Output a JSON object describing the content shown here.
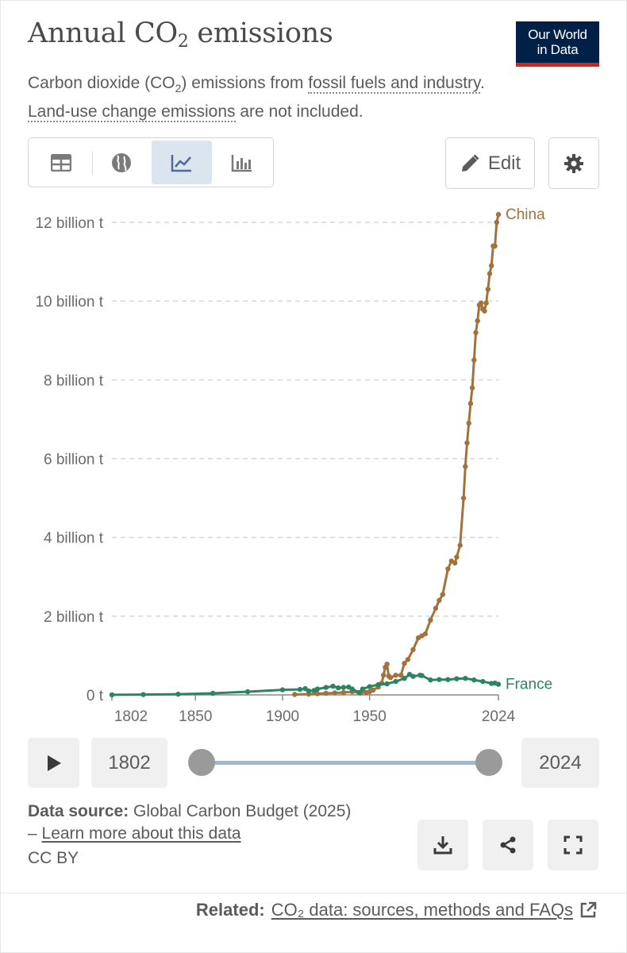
{
  "header": {
    "title_main": "Annual CO",
    "title_sub": "2",
    "title_end": " emissions",
    "logo_line1": "Our World",
    "logo_line2": "in Data",
    "subtitle_part1": "Carbon dioxide (CO",
    "subtitle_sub": "2",
    "subtitle_part2": ") emissions from ",
    "subtitle_link1": "fossil fuels and industry",
    "subtitle_part3": ". ",
    "subtitle_link2": "Land-use change emissions",
    "subtitle_part4": " are not included."
  },
  "toolbar": {
    "tabs": [
      {
        "icon": "table-icon"
      },
      {
        "icon": "globe-icon"
      },
      {
        "icon": "line-chart-icon",
        "active": true
      },
      {
        "icon": "bar-chart-icon"
      }
    ],
    "edit_label": "Edit",
    "settings_icon": "gear-icon"
  },
  "chart_data": {
    "type": "line",
    "xlabel": "",
    "ylabel": "",
    "xlim": [
      1802,
      2024
    ],
    "ylim": [
      0,
      12000000000
    ],
    "x_ticks": [
      1802,
      1850,
      1900,
      1950,
      2024
    ],
    "y_ticks": [
      {
        "value": 0,
        "label": "0 t"
      },
      {
        "value": 2000000000,
        "label": "2 billion t"
      },
      {
        "value": 4000000000,
        "label": "4 billion t"
      },
      {
        "value": 6000000000,
        "label": "6 billion t"
      },
      {
        "value": 8000000000,
        "label": "8 billion t"
      },
      {
        "value": 10000000000,
        "label": "10 billion t"
      },
      {
        "value": 12000000000,
        "label": "12 billion t"
      }
    ],
    "grid": "horizontal-dashed",
    "series": [
      {
        "name": "China",
        "color": "#a2723c",
        "x": [
          1907,
          1915,
          1920,
          1925,
          1930,
          1935,
          1940,
          1945,
          1948,
          1950,
          1952,
          1955,
          1957,
          1958,
          1959,
          1960,
          1961,
          1962,
          1965,
          1968,
          1970,
          1972,
          1975,
          1978,
          1980,
          1982,
          1985,
          1988,
          1990,
          1992,
          1995,
          1997,
          1999,
          2000,
          2002,
          2004,
          2005,
          2006,
          2007,
          2008,
          2009,
          2010,
          2011,
          2012,
          2013,
          2014,
          2015,
          2016,
          2017,
          2018,
          2019,
          2020,
          2021,
          2022,
          2023,
          2024
        ],
        "y": [
          10000000,
          20000000,
          30000000,
          40000000,
          50000000,
          60000000,
          80000000,
          50000000,
          60000000,
          80000000,
          120000000,
          200000000,
          300000000,
          500000000,
          700000000,
          780000000,
          480000000,
          440000000,
          500000000,
          500000000,
          800000000,
          900000000,
          1150000000,
          1450000000,
          1500000000,
          1550000000,
          1900000000,
          2200000000,
          2400000000,
          2550000000,
          3200000000,
          3400000000,
          3350000000,
          3500000000,
          3800000000,
          5000000000,
          5800000000,
          6400000000,
          6900000000,
          7400000000,
          7800000000,
          8500000000,
          9200000000,
          9500000000,
          9900000000,
          9950000000,
          9800000000,
          9750000000,
          9950000000,
          10300000000,
          10700000000,
          10900000000,
          11400000000,
          11400000000,
          12000000000,
          12200000000
        ]
      },
      {
        "name": "France",
        "color": "#2c8465",
        "x": [
          1802,
          1820,
          1840,
          1860,
          1880,
          1900,
          1910,
          1913,
          1915,
          1918,
          1920,
          1925,
          1929,
          1932,
          1935,
          1938,
          1940,
          1944,
          1946,
          1950,
          1955,
          1960,
          1965,
          1970,
          1973,
          1975,
          1979,
          1980,
          1985,
          1990,
          1995,
          2000,
          2005,
          2010,
          2015,
          2020,
          2022,
          2024
        ],
        "y": [
          2000000,
          8000000,
          18000000,
          40000000,
          80000000,
          130000000,
          140000000,
          160000000,
          100000000,
          110000000,
          150000000,
          190000000,
          220000000,
          180000000,
          190000000,
          200000000,
          150000000,
          60000000,
          150000000,
          210000000,
          260000000,
          280000000,
          340000000,
          420000000,
          520000000,
          470000000,
          500000000,
          490000000,
          380000000,
          390000000,
          390000000,
          410000000,
          420000000,
          380000000,
          340000000,
          290000000,
          300000000,
          270000000
        ]
      }
    ]
  },
  "timeline": {
    "start_year": "1802",
    "end_year": "2024",
    "play_icon": "play-icon"
  },
  "footer": {
    "source_label": "Data source:",
    "source_text": " Global Carbon Budget (2025)",
    "learn_prefix": "– ",
    "learn_link": "Learn more about this data",
    "license": "CC BY",
    "related_label": "Related:",
    "related_link": "CO₂ data: sources, methods and FAQs"
  }
}
